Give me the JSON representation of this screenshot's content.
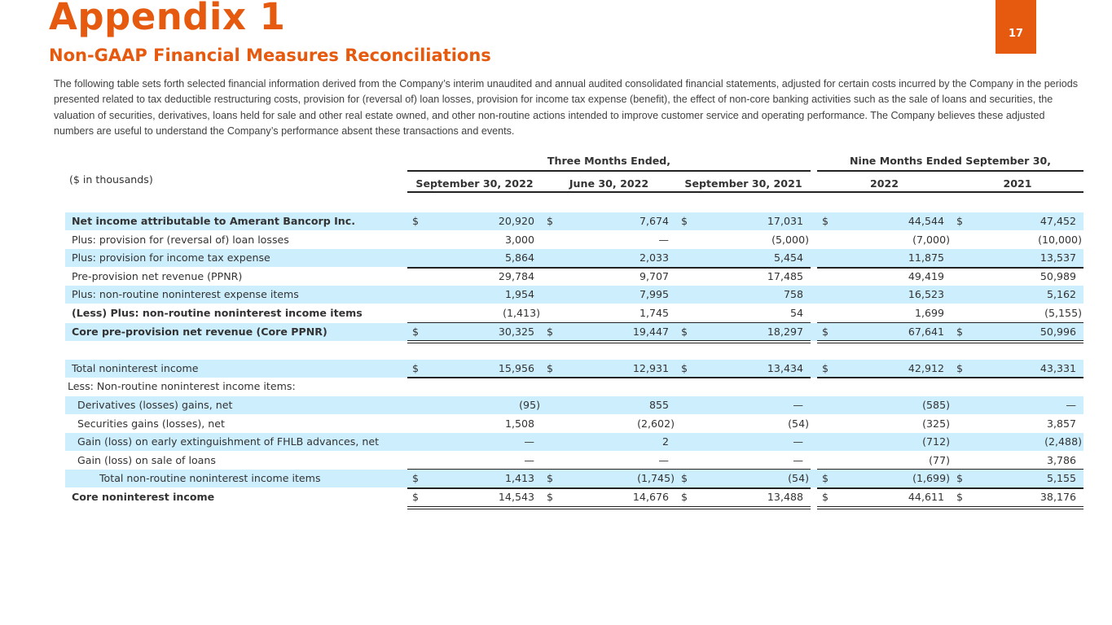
{
  "header": {
    "title": "Appendix 1",
    "subtitle": "Non-GAAP Financial Measures Reconciliations",
    "page_number": "17"
  },
  "intro": "The following table sets forth selected financial information derived from the Company’s interim unaudited and annual audited consolidated financial statements, adjusted for certain costs incurred by the Company in the periods presented related to tax deductible restructuring costs, provision for (reversal of) loan losses, provision for income tax expense (benefit), the effect of non-core banking activities such as the sale of loans and securities, the valuation of securities, derivatives, loans held for sale and other real estate owned, and other non-routine actions intended to improve customer service and operating performance. The Company believes these adjusted numbers are useful to understand the Company’s performance absent these transactions and events.",
  "table": {
    "units": "($ in thousands)",
    "group_headers": [
      "Three Months Ended,",
      "Nine Months Ended September 30,"
    ],
    "columns": [
      "September 30, 2022",
      "June 30, 2022",
      "September 30, 2021",
      "2022",
      "2021"
    ],
    "rows": [
      {
        "label": "Net income attributable to Amerant Bancorp Inc.",
        "bold": true,
        "shade": true,
        "values": [
          "20,920",
          "7,674",
          "17,031",
          "44,544",
          "47,452"
        ],
        "dollar": true
      },
      {
        "label": "Plus: provision for (reversal of) loan losses",
        "values": [
          "3,000",
          "—",
          "(5,000)",
          "(7,000)",
          "(10,000)"
        ]
      },
      {
        "label": "Plus: provision for income tax expense",
        "shade": true,
        "values": [
          "5,864",
          "2,033",
          "5,454",
          "11,875",
          "13,537"
        ],
        "under": "single"
      },
      {
        "label": "Pre-provision net revenue (PPNR)",
        "values": [
          "29,784",
          "9,707",
          "17,485",
          "49,419",
          "50,989"
        ]
      },
      {
        "label": "Plus: non-routine noninterest expense items",
        "shade": true,
        "values": [
          "1,954",
          "7,995",
          "758",
          "16,523",
          "5,162"
        ]
      },
      {
        "label": "(Less) Plus: non-routine noninterest income items",
        "bold": true,
        "values": [
          "(1,413)",
          "1,745",
          "54",
          "1,699",
          "(5,155)"
        ],
        "under": "single"
      },
      {
        "label": "Core pre-provision net revenue (Core PPNR)",
        "bold": true,
        "shade": true,
        "values": [
          "30,325",
          "19,447",
          "18,297",
          "67,641",
          "50,996"
        ],
        "dollar": true,
        "under": "double"
      },
      {
        "label": "",
        "values": [
          "",
          "",
          "",
          "",
          ""
        ]
      },
      {
        "label": "Total noninterest income",
        "shade": true,
        "values": [
          "15,956",
          "12,931",
          "13,434",
          "42,912",
          "43,331"
        ],
        "dollar": true,
        "under": "single"
      },
      {
        "label": "Less: Non-routine noninterest income items:",
        "values": [
          "",
          "",
          "",
          "",
          ""
        ]
      },
      {
        "label": "Derivatives (losses) gains, net",
        "indent": 1,
        "shade": true,
        "values": [
          "(95)",
          "855",
          "—",
          "(585)",
          "—"
        ]
      },
      {
        "label": "Securities gains (losses), net",
        "indent": 1,
        "values": [
          "1,508",
          "(2,602)",
          "(54)",
          "(325)",
          "3,857"
        ]
      },
      {
        "label": "Gain (loss) on early extinguishment of FHLB advances, net",
        "indent": 1,
        "shade": true,
        "values": [
          "—",
          "2",
          "—",
          "(712)",
          "(2,488)"
        ]
      },
      {
        "label": "Gain (loss) on sale of loans",
        "indent": 1,
        "values": [
          "—",
          "—",
          "—",
          "(77)",
          "3,786"
        ],
        "under": "single"
      },
      {
        "label": "Total non-routine noninterest income items",
        "indent": 2,
        "shade": true,
        "values": [
          "1,413",
          "(1,745)",
          "(54)",
          "(1,699)",
          "5,155"
        ],
        "dollar": true,
        "under": "single"
      },
      {
        "label": "Core noninterest income",
        "bold": true,
        "values": [
          "14,543",
          "14,676",
          "13,488",
          "44,611",
          "38,176"
        ],
        "dollar": true,
        "under": "double"
      }
    ],
    "dollar_sign": "$"
  },
  "colors": {
    "accent": "#e55a0f",
    "row_shade": "#cdeefc"
  }
}
